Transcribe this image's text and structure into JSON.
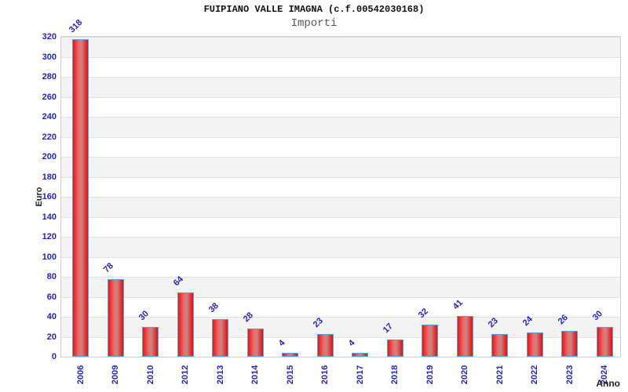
{
  "header": {
    "title": "FUIPIANO VALLE IMAGNA (c.f.00542030168)",
    "subtitle": "Importi"
  },
  "chart_data": {
    "type": "bar",
    "title": "FUIPIANO VALLE IMAGNA (c.f.00542030168)",
    "subtitle": "Importi",
    "xlabel": "Anno",
    "ylabel": "Euro",
    "categories": [
      "2006",
      "2009",
      "2010",
      "2012",
      "2013",
      "2014",
      "2015",
      "2016",
      "2017",
      "2018",
      "2019",
      "2020",
      "2021",
      "2022",
      "2023",
      "2024"
    ],
    "values": [
      318,
      78,
      30,
      64,
      38,
      28,
      4,
      23,
      4,
      17,
      32,
      41,
      23,
      24,
      26,
      30
    ],
    "ylim": [
      0,
      320
    ],
    "ytick_step": 20,
    "grid": "horizontal-bands",
    "legend": null,
    "colors": {
      "bar_fill_edge": "#e01818",
      "bar_fill_light": "#ef6a6a",
      "bar_fill_mid": "#cb8484",
      "bar_border": "#5ba3dc",
      "tick_label": "#2323c3",
      "value_label": "#2323c3",
      "band_gray": "#f3f3f3",
      "band_white": "#ffffff",
      "grid_line": "#e3e3e3",
      "plot_border": "#cfcfcf",
      "title_color": "#111111",
      "subtitle_color": "#555555",
      "axis_title_color": "#222222"
    }
  }
}
